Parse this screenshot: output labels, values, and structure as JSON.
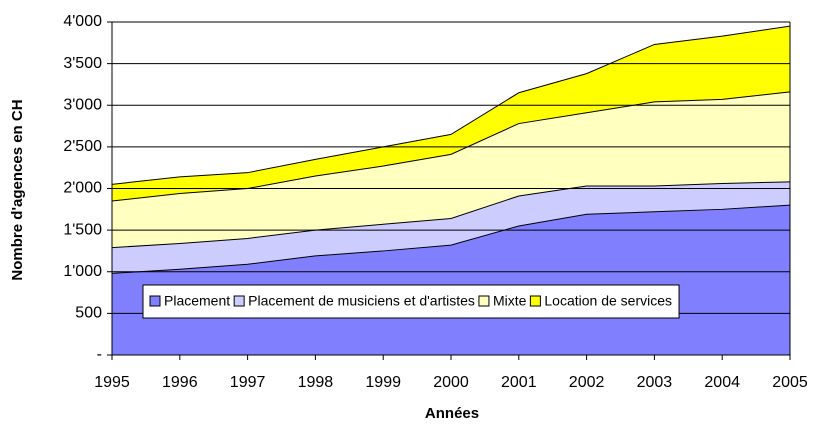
{
  "chart_data": {
    "type": "stacked-area",
    "x": [
      1995,
      1996,
      1997,
      1998,
      1999,
      2000,
      2001,
      2002,
      2003,
      2004,
      2005
    ],
    "xlim": [
      1995,
      2005
    ],
    "xticks": [
      1995,
      1996,
      1997,
      1998,
      1999,
      2000,
      2001,
      2002,
      2003,
      2004,
      2005
    ],
    "ylim": [
      0,
      4000
    ],
    "yticks": [
      {
        "value": 0,
        "label": "-"
      },
      500,
      {
        "value": 1000,
        "label": "1'000"
      },
      {
        "value": 1500,
        "label": "1'500"
      },
      {
        "value": 2000,
        "label": "2'000"
      },
      {
        "value": 2500,
        "label": "2'500"
      },
      {
        "value": 3000,
        "label": "3'000"
      },
      {
        "value": 3500,
        "label": "3'500"
      },
      {
        "value": 4000,
        "label": "4'000"
      }
    ],
    "grid": true,
    "x_label": "Années",
    "y_label": "Nombre d'agences en CH",
    "series": [
      {
        "name": "Placement",
        "color": "#8080ff",
        "values": [
          980,
          1030,
          1090,
          1190,
          1250,
          1320,
          1550,
          1690,
          1720,
          1750,
          1800
        ]
      },
      {
        "name": "Placement de musiciens et d'artistes",
        "color": "#ccccff",
        "values": [
          310,
          310,
          310,
          310,
          320,
          320,
          360,
          340,
          310,
          310,
          280
        ]
      },
      {
        "name": "Mixte",
        "color": "#ffffc0",
        "values": [
          560,
          600,
          600,
          650,
          700,
          770,
          870,
          880,
          1010,
          1010,
          1080
        ]
      },
      {
        "name": "Location de services",
        "color": "#ffff00",
        "values": [
          200,
          200,
          190,
          200,
          230,
          240,
          370,
          470,
          690,
          760,
          790
        ]
      }
    ]
  }
}
